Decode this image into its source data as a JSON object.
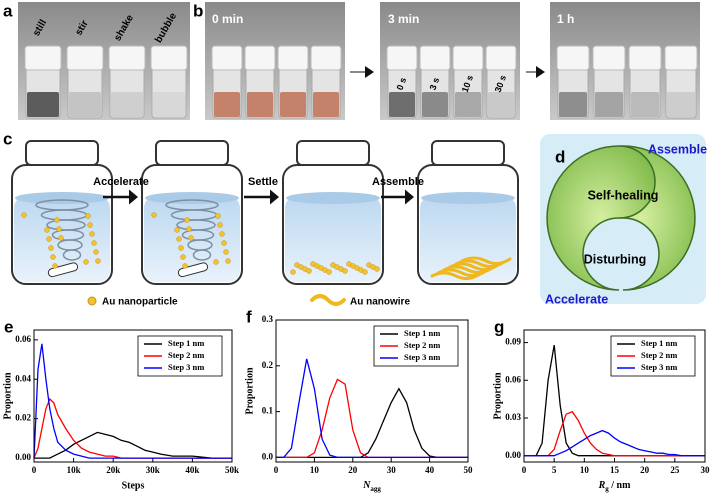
{
  "figure": {
    "panel_labels": [
      "a",
      "b",
      "c",
      "d"
    ],
    "a": {
      "vial_labels": [
        "still",
        "stir",
        "shake",
        "bubble"
      ]
    },
    "b": {
      "photo_labels": [
        "0 min",
        "3 min",
        "1 h"
      ],
      "vial_labels": [
        "0 s",
        "3 s",
        "10 s",
        "30 s"
      ]
    },
    "c": {
      "arrows": [
        "Accelerate",
        "Settle",
        "Assemble"
      ],
      "legend": [
        "Au nanoparticle",
        "Au nanowire"
      ]
    },
    "d": {
      "labels": [
        "Assemble",
        "Self-healing",
        "Disturbing",
        "Accelerate"
      ]
    }
  },
  "chart_data": [
    {
      "type": "line",
      "panel_label": "e",
      "y_label": "Proportion",
      "x_label": "Steps",
      "x": [
        0,
        1000,
        2000,
        3000,
        4000,
        5000,
        6000,
        8000,
        10000,
        12000,
        14000,
        16000,
        18000,
        20000,
        22000,
        24000,
        26000,
        28000,
        30000,
        32000,
        35000,
        40000,
        45000,
        50000
      ],
      "series": [
        {
          "name": "Step 1 nm",
          "color": "#000000",
          "values": [
            0,
            0,
            0,
            0,
            0,
            0.001,
            0.002,
            0.004,
            0.007,
            0.009,
            0.011,
            0.013,
            0.012,
            0.011,
            0.009,
            0.008,
            0.006,
            0.004,
            0.003,
            0.002,
            0.001,
            0.001,
            0,
            0
          ]
        },
        {
          "name": "Step 2 nm",
          "color": "#ff0000",
          "values": [
            0,
            0.005,
            0.015,
            0.025,
            0.03,
            0.028,
            0.022,
            0.015,
            0.009,
            0.005,
            0.003,
            0.002,
            0.001,
            0.001,
            0,
            0,
            0,
            0,
            0,
            0,
            0,
            0,
            0,
            0
          ]
        },
        {
          "name": "Step 3 nm",
          "color": "#0000ff",
          "values": [
            0,
            0.045,
            0.058,
            0.04,
            0.025,
            0.015,
            0.008,
            0.004,
            0.002,
            0.001,
            0,
            0,
            0,
            0,
            0,
            0,
            0,
            0,
            0,
            0,
            0,
            0,
            0,
            0
          ]
        }
      ],
      "xlim": [
        0,
        50000
      ],
      "ylim": [
        -0.002,
        0.065
      ],
      "xticks": [
        0,
        {
          "value": 10000,
          "label": "10k"
        },
        {
          "value": 20000,
          "label": "20k"
        },
        {
          "value": 30000,
          "label": "30k"
        },
        {
          "value": 40000,
          "label": "40k"
        },
        {
          "value": 50000,
          "label": "50k"
        }
      ],
      "yticks": [
        {
          "value": 0,
          "label": "0.00"
        },
        0.02,
        0.04,
        0.06
      ],
      "legend": "upper right"
    },
    {
      "type": "line",
      "panel_label": "f",
      "y_label": "Proportion",
      "x_label": {
        "symbol": "N",
        "subscript": "agg"
      },
      "x": [
        0,
        2,
        4,
        6,
        8,
        10,
        12,
        14,
        16,
        18,
        20,
        22,
        24,
        26,
        28,
        30,
        32,
        34,
        36,
        38,
        40,
        42,
        44,
        46,
        48,
        50
      ],
      "series": [
        {
          "name": "Step 1 nm",
          "color": "#000000",
          "values": [
            0,
            0,
            0,
            0,
            0,
            0,
            0,
            0,
            0,
            0,
            0,
            0,
            0.01,
            0.04,
            0.08,
            0.12,
            0.15,
            0.12,
            0.06,
            0.02,
            0.003,
            0,
            0,
            0,
            0,
            0
          ]
        },
        {
          "name": "Step 2 nm",
          "color": "#ff0000",
          "values": [
            0,
            0,
            0,
            0,
            0,
            0.01,
            0.06,
            0.13,
            0.17,
            0.16,
            0.06,
            0.01,
            0,
            0,
            0,
            0,
            0,
            0,
            0,
            0,
            0,
            0,
            0,
            0,
            0,
            0
          ]
        },
        {
          "name": "Step 3 nm",
          "color": "#0000ff",
          "values": [
            0,
            0,
            0.02,
            0.12,
            0.215,
            0.15,
            0.04,
            0.005,
            0,
            0,
            0,
            0,
            0,
            0,
            0,
            0,
            0,
            0,
            0,
            0,
            0,
            0,
            0,
            0,
            0,
            0
          ]
        }
      ],
      "xlim": [
        0,
        50
      ],
      "ylim": [
        -0.01,
        0.3
      ],
      "xticks": [
        0,
        10,
        20,
        30,
        40,
        50
      ],
      "yticks": [
        {
          "value": 0,
          "label": "0.0"
        },
        0.1,
        0.2,
        0.3
      ],
      "legend": "upper right"
    },
    {
      "type": "line",
      "panel_label": "g",
      "y_label": "Proportion",
      "x_label": {
        "symbol": "R",
        "subscript": "g",
        "unit": " / nm"
      },
      "x": [
        0,
        1,
        2,
        3,
        4,
        5,
        6,
        7,
        8,
        9,
        10,
        11,
        12,
        13,
        14,
        15,
        16,
        17,
        18,
        19,
        20,
        21,
        22,
        23,
        24,
        25,
        26,
        27,
        28,
        29,
        30
      ],
      "series": [
        {
          "name": "Step 1 nm",
          "color": "#000000",
          "values": [
            0,
            0,
            0,
            0.01,
            0.06,
            0.088,
            0.04,
            0.01,
            0.002,
            0,
            0,
            0,
            0,
            0,
            0,
            0,
            0,
            0,
            0,
            0,
            0,
            0,
            0,
            0,
            0,
            0,
            0,
            0,
            0,
            0,
            0
          ]
        },
        {
          "name": "Step 2 nm",
          "color": "#ff0000",
          "values": [
            0,
            0,
            0,
            0,
            0,
            0.005,
            0.02,
            0.033,
            0.035,
            0.028,
            0.018,
            0.01,
            0.005,
            0.002,
            0.001,
            0,
            0,
            0,
            0,
            0,
            0,
            0,
            0,
            0,
            0,
            0,
            0,
            0,
            0,
            0,
            0
          ]
        },
        {
          "name": "Step 3 nm",
          "color": "#0000ff",
          "values": [
            0,
            0,
            0,
            0,
            0,
            0,
            0.002,
            0.004,
            0.007,
            0.01,
            0.013,
            0.016,
            0.018,
            0.02,
            0.018,
            0.014,
            0.011,
            0.009,
            0.007,
            0.005,
            0.004,
            0.003,
            0.002,
            0.002,
            0.001,
            0.001,
            0,
            0,
            0,
            0,
            0
          ]
        }
      ],
      "xlim": [
        0,
        30
      ],
      "ylim": [
        -0.005,
        0.1
      ],
      "xticks": [
        0,
        5,
        10,
        15,
        20,
        25,
        30
      ],
      "yticks": [
        {
          "value": 0,
          "label": "0.00"
        },
        0.03,
        0.06,
        0.09
      ],
      "legend": "upper right"
    }
  ]
}
